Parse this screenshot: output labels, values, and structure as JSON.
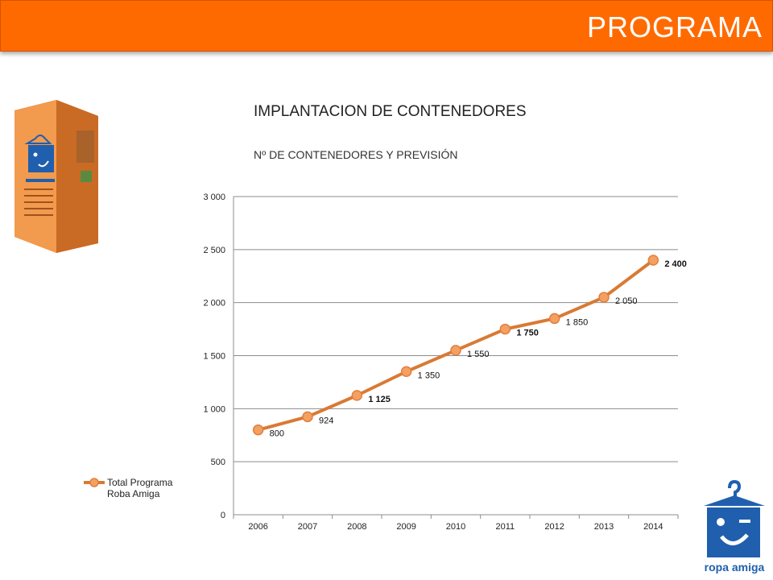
{
  "header": {
    "title": "PROGRAMA"
  },
  "heading": {
    "title": "IMPLANTACION DE CONTENEDORES",
    "subtitle": "Nº DE CONTENEDORES Y PREVISIÓN"
  },
  "colors": {
    "header": "#ff6a00",
    "series_line": "#d97a33",
    "marker_fill": "#f4a060",
    "logo_blue": "#1f5fae"
  },
  "icons": {
    "container_image": "clothing-container-icon",
    "logo": "ropa-amiga-logo-icon"
  },
  "logo_text": "ropa amiga",
  "chart_data": {
    "type": "line",
    "x": [
      "2006",
      "2007",
      "2008",
      "2009",
      "2010",
      "2011",
      "2012",
      "2013",
      "2014"
    ],
    "series": [
      {
        "name": "Total Programa Roba Amiga",
        "values": [
          800,
          924,
          1125,
          1350,
          1550,
          1750,
          1850,
          2050,
          2400
        ],
        "labels": [
          "800",
          "924",
          "1 125",
          "1 350",
          "1 550",
          "1 750",
          "1 850",
          "2 050",
          "2 400"
        ],
        "bold_labels": [
          false,
          false,
          true,
          false,
          false,
          true,
          false,
          false,
          true
        ]
      }
    ],
    "yticks": [
      0,
      500,
      1000,
      1500,
      2000,
      2500,
      3000
    ],
    "ytick_labels": [
      "0",
      "500",
      "1 000",
      "1 500",
      "2 000",
      "2 500",
      "3 000"
    ],
    "ylim": [
      0,
      3000
    ],
    "grid": true,
    "legend": {
      "position": "left",
      "lines": [
        "Total Programa",
        "Roba Amiga"
      ]
    }
  }
}
